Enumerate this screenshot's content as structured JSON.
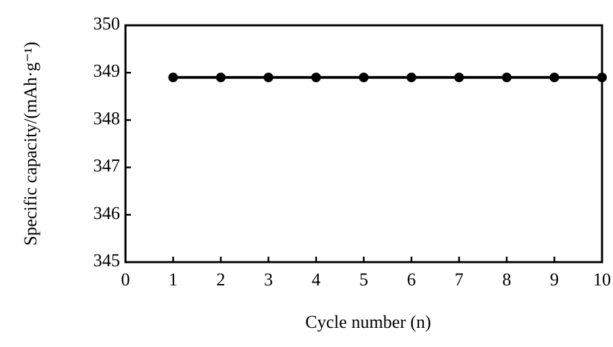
{
  "chart_data": {
    "type": "line",
    "x_label": "Cycle number (n)",
    "y_label": "Specific capacity/(mAh·g⁻¹)",
    "x": [
      1,
      2,
      3,
      4,
      5,
      6,
      7,
      8,
      9,
      10
    ],
    "series": [
      {
        "name": "Specific capacity",
        "color": "#000000",
        "values": [
          348.9,
          348.9,
          348.9,
          348.9,
          348.9,
          348.9,
          348.9,
          348.9,
          348.9,
          348.9
        ]
      }
    ],
    "xlim": [
      0,
      10
    ],
    "xticks": [
      0,
      1,
      2,
      3,
      4,
      5,
      6,
      7,
      8,
      9,
      10
    ],
    "ylim": [
      345,
      350
    ],
    "yticks": [
      345,
      346,
      347,
      348,
      349,
      350
    ],
    "grid": false
  }
}
